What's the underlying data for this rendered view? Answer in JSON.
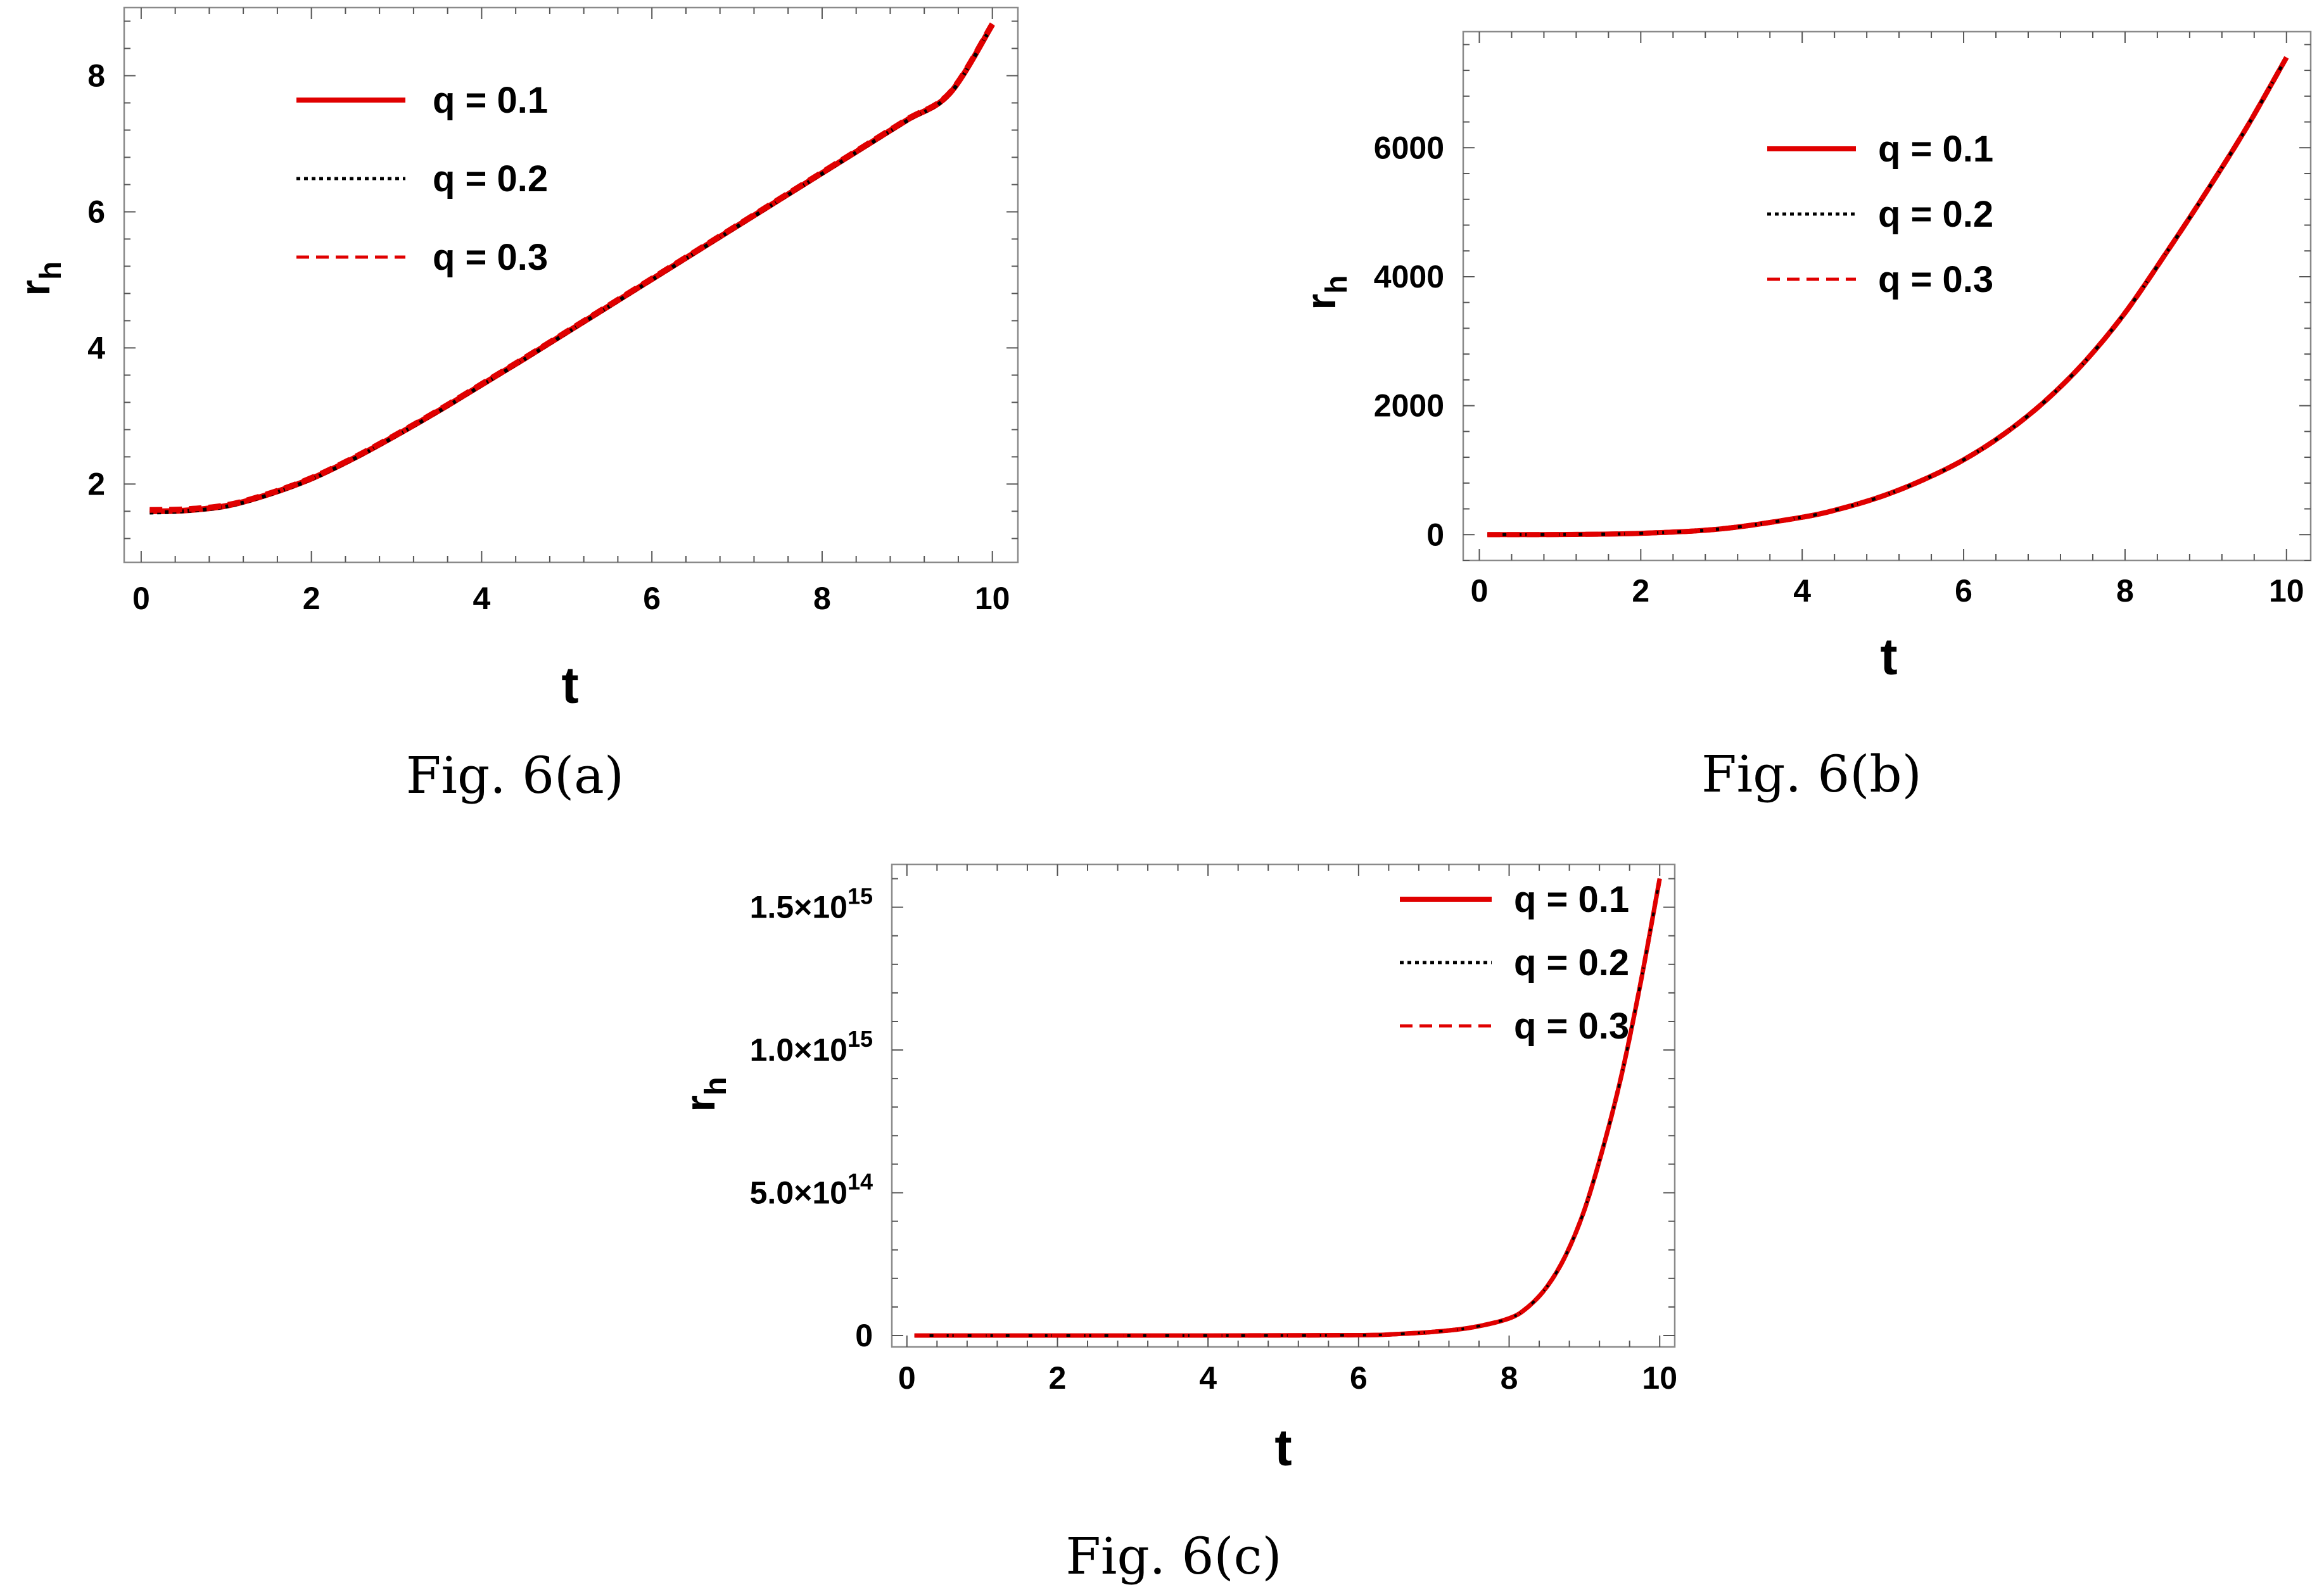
{
  "chart_data": [
    {
      "id": "a",
      "type": "line",
      "caption": "Fig. 6(a)",
      "xlabel": "t",
      "ylabel": "r",
      "ylabel_sub": "h",
      "xlim": [
        -0.2,
        10.3
      ],
      "ylim": [
        0.85,
        9.0
      ],
      "xticks": [
        "0",
        "2",
        "4",
        "6",
        "8",
        "10"
      ],
      "yticks": [
        "2",
        "4",
        "6",
        "8"
      ],
      "x": [
        0.1,
        0.5,
        1,
        1.5,
        2,
        2.5,
        3,
        3.5,
        4,
        4.5,
        5,
        5.5,
        6,
        6.5,
        7,
        7.5,
        8,
        8.5,
        9,
        9.5,
        10
      ],
      "legend_position": "top-left",
      "series": [
        {
          "name": "q = 0.1",
          "style": "solid",
          "color": "#e00000",
          "values": [
            1.6,
            1.61,
            1.68,
            1.85,
            2.08,
            2.38,
            2.72,
            3.08,
            3.46,
            3.84,
            4.23,
            4.62,
            5.01,
            5.4,
            5.79,
            6.18,
            6.57,
            6.96,
            7.35,
            7.74,
            8.75
          ]
        },
        {
          "name": "q = 0.2",
          "style": "dotted",
          "color": "#000000",
          "values": [
            1.58,
            1.6,
            1.67,
            1.84,
            2.07,
            2.37,
            2.71,
            3.07,
            3.45,
            3.83,
            4.22,
            4.61,
            5.0,
            5.39,
            5.78,
            6.17,
            6.56,
            6.95,
            7.34,
            7.73,
            8.74
          ]
        },
        {
          "name": "q = 0.3",
          "style": "dashed",
          "color": "#e00000",
          "values": [
            1.62,
            1.63,
            1.69,
            1.86,
            2.09,
            2.39,
            2.73,
            3.09,
            3.47,
            3.85,
            4.24,
            4.63,
            5.02,
            5.41,
            5.8,
            6.19,
            6.58,
            6.97,
            7.36,
            7.75,
            8.76
          ]
        }
      ]
    },
    {
      "id": "b",
      "type": "line",
      "caption": "Fig. 6(b)",
      "xlabel": "t",
      "ylabel": "r",
      "ylabel_sub": "h",
      "xlim": [
        -0.2,
        10.3
      ],
      "ylim": [
        -400,
        7800
      ],
      "xticks": [
        "0",
        "2",
        "4",
        "6",
        "8",
        "10"
      ],
      "yticks": [
        "0",
        "2000",
        "4000",
        "6000"
      ],
      "x": [
        0.1,
        1,
        2,
        3,
        4,
        4.5,
        5,
        5.5,
        6,
        6.5,
        7,
        7.5,
        8,
        8.5,
        9,
        9.5,
        10
      ],
      "legend_position": "top-center",
      "series": [
        {
          "name": "q = 0.1",
          "style": "solid",
          "color": "#e00000",
          "values": [
            0,
            2,
            20,
            90,
            270,
            410,
            600,
            850,
            1160,
            1560,
            2060,
            2680,
            3440,
            4350,
            5300,
            6300,
            7400
          ]
        },
        {
          "name": "q = 0.2",
          "style": "dotted",
          "color": "#000000",
          "values": [
            0,
            2,
            20,
            90,
            270,
            410,
            600,
            850,
            1160,
            1560,
            2060,
            2680,
            3440,
            4350,
            5300,
            6300,
            7400
          ]
        },
        {
          "name": "q = 0.3",
          "style": "dashed",
          "color": "#e00000",
          "values": [
            0,
            2,
            20,
            90,
            270,
            410,
            600,
            850,
            1160,
            1560,
            2060,
            2680,
            3440,
            4350,
            5300,
            6300,
            7400
          ]
        }
      ]
    },
    {
      "id": "c",
      "type": "line",
      "caption": "Fig. 6(c)",
      "xlabel": "t",
      "ylabel": "r",
      "ylabel_sub": "h",
      "xlim": [
        -0.2,
        10.2
      ],
      "ylim": [
        -40000000000000.0,
        1650000000000000.0
      ],
      "xticks": [
        "0",
        "2",
        "4",
        "6",
        "8",
        "10"
      ],
      "yticks": [
        {
          "mantissa": "0",
          "exp": ""
        },
        {
          "mantissa": "5.0×10",
          "exp": "14"
        },
        {
          "mantissa": "1.0×10",
          "exp": "15"
        },
        {
          "mantissa": "1.5×10",
          "exp": "15"
        }
      ],
      "x": [
        0.1,
        2,
        4,
        6,
        6.5,
        7,
        7.5,
        8,
        8.25,
        8.5,
        8.75,
        9,
        9.25,
        9.5,
        9.75,
        10
      ],
      "legend_position": "top-right",
      "series": [
        {
          "name": "q = 0.1",
          "style": "solid",
          "color": "#e00000",
          "values": [
            0,
            0,
            0,
            1000000000000.0,
            5000000000000.0,
            13000000000000.0,
            28000000000000.0,
            60000000000000.0,
            100000000000000.0,
            170000000000000.0,
            280000000000000.0,
            440000000000000.0,
            660000000000000.0,
            920000000000000.0,
            1240000000000000.0,
            1600000000000000.0
          ]
        },
        {
          "name": "q = 0.2",
          "style": "dotted",
          "color": "#000000",
          "values": [
            0,
            0,
            0,
            1000000000000.0,
            5000000000000.0,
            13000000000000.0,
            28000000000000.0,
            60000000000000.0,
            100000000000000.0,
            170000000000000.0,
            280000000000000.0,
            440000000000000.0,
            660000000000000.0,
            920000000000000.0,
            1240000000000000.0,
            1600000000000000.0
          ]
        },
        {
          "name": "q = 0.3",
          "style": "dashed",
          "color": "#e00000",
          "values": [
            0,
            0,
            0,
            1000000000000.0,
            5000000000000.0,
            13000000000000.0,
            28000000000000.0,
            60000000000000.0,
            100000000000000.0,
            170000000000000.0,
            280000000000000.0,
            440000000000000.0,
            660000000000000.0,
            920000000000000.0,
            1240000000000000.0,
            1600000000000000.0
          ]
        }
      ]
    }
  ]
}
